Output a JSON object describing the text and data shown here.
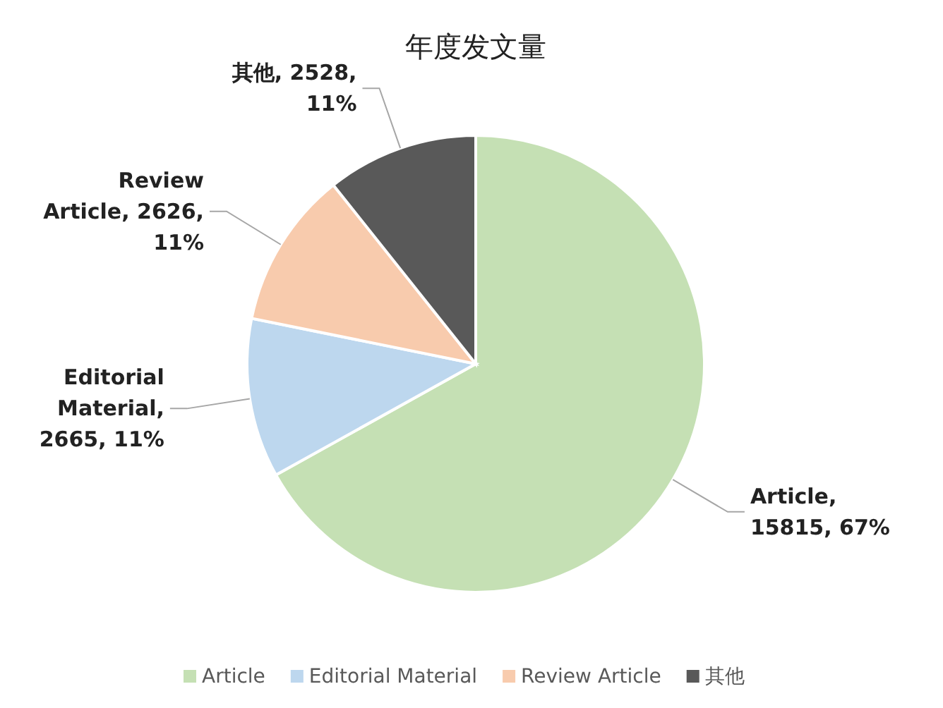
{
  "chart_data": {
    "type": "pie",
    "title": "年度发文量",
    "categories": [
      "Article",
      "Editorial Material",
      "Review Article",
      "其他"
    ],
    "values": [
      15815,
      2665,
      2626,
      2528
    ],
    "value_labels": [
      "Article, 15815, 67%",
      "Editorial Material, 2665, 11%",
      "Review Article, 2626, 11%",
      "其他, 2528, 11%"
    ],
    "colors": [
      "#c5e0b4",
      "#bdd7ee",
      "#f8cbad",
      "#595959"
    ],
    "legend": "bottom"
  }
}
